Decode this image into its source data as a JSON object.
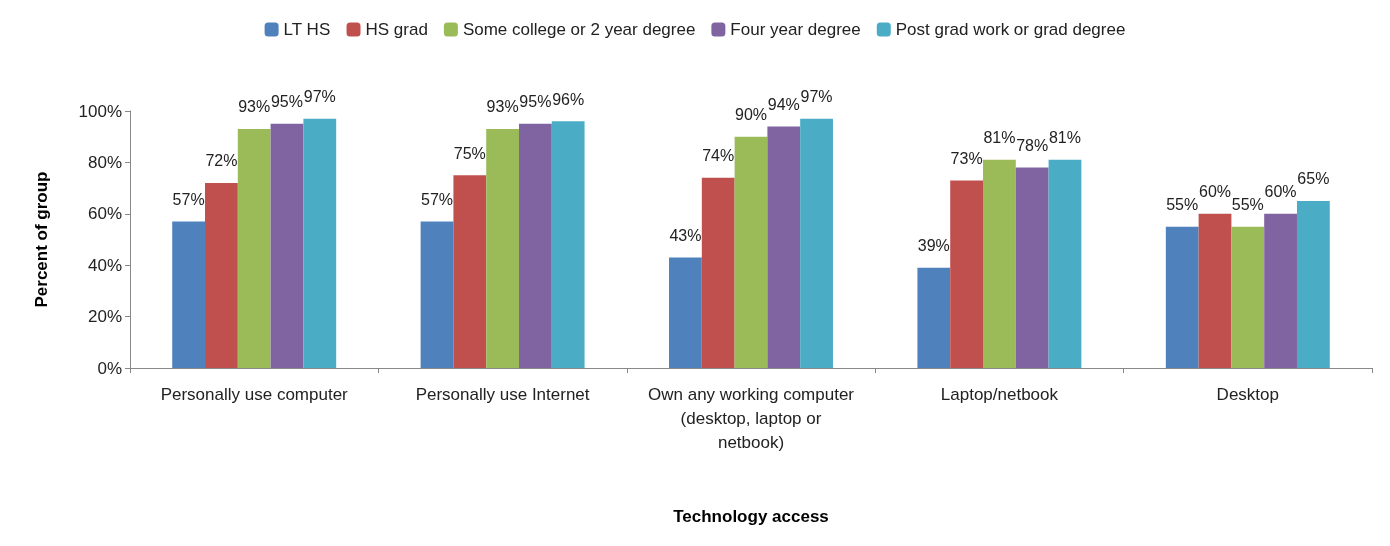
{
  "chart_data": {
    "type": "bar",
    "xlabel": "Technology access",
    "ylabel": "Percent of group",
    "categories": [
      "Personally use computer",
      "Personally use Internet",
      "Own any working computer (desktop, laptop or netbook)",
      "Laptop/netbook",
      "Desktop"
    ],
    "series": [
      {
        "name": "LT HS",
        "color": "#4f81bd",
        "values": [
          57,
          57,
          43,
          39,
          55
        ],
        "value_labels": [
          "57%",
          "57%",
          "43%",
          "39%",
          "55%"
        ]
      },
      {
        "name": "HS grad",
        "color": "#c0504d",
        "values": [
          72,
          75,
          74,
          73,
          60
        ],
        "value_labels": [
          "72%",
          "75%",
          "74%",
          "73%",
          "60%"
        ]
      },
      {
        "name": "Some college or 2 year degree",
        "color": "#9bbb59",
        "values": [
          93,
          93,
          90,
          81,
          55
        ],
        "value_labels": [
          "93%",
          "93%",
          "90%",
          "81%",
          "55%"
        ]
      },
      {
        "name": "Four year degree",
        "color": "#8064a2",
        "values": [
          95,
          95,
          94,
          78,
          60
        ],
        "value_labels": [
          "95%",
          "95%",
          "94%",
          "78%",
          "60%"
        ]
      },
      {
        "name": "Post grad work or grad degree",
        "color": "#4bacc6",
        "values": [
          97,
          96,
          97,
          81,
          65
        ],
        "value_labels": [
          "97%",
          "96%",
          "97%",
          "81%",
          "65%"
        ]
      }
    ],
    "ylim": [
      0,
      100
    ],
    "yticks": [
      {
        "value": 0,
        "label": "0%"
      },
      {
        "value": 20,
        "label": "20%"
      },
      {
        "value": 40,
        "label": "40%"
      },
      {
        "value": 60,
        "label": "60%"
      },
      {
        "value": 80,
        "label": "80%"
      },
      {
        "value": 100,
        "label": "100%"
      }
    ],
    "grid": false,
    "legend": "top"
  }
}
